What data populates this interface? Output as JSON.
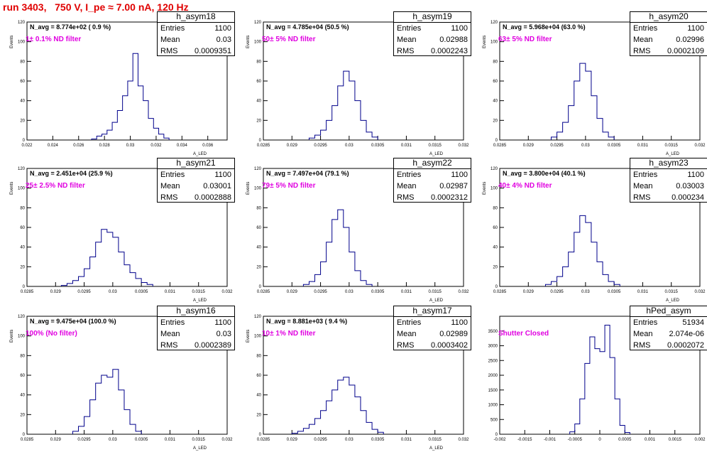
{
  "title": "run 3403,   750 V, I_pe ≈ 7.00 nA, 120 Hz",
  "colors": {
    "title": "#e00000",
    "histogram": "#00008b",
    "filter_text": "#e000e0"
  },
  "chart_data": [
    {
      "type": "histogram",
      "name": "h_asym18",
      "stats": {
        "entries": "1100",
        "mean": "0.03",
        "rms": "0.0009351"
      },
      "n_avg": "N_avg = 8.774e+02 ( 0.9 %)",
      "filter": "1± 0.1% ND filter",
      "xlabel": "A_LED",
      "ylabel": "Events",
      "xlim": [
        0.022,
        0.0375
      ],
      "ylim": [
        0,
        120
      ],
      "xticks": [
        "0.022",
        "0.024",
        "0.026",
        "0.028",
        "0.03",
        "0.032",
        "0.034",
        "0.036"
      ],
      "yticks": [
        "0",
        "20",
        "40",
        "60",
        "80",
        "100",
        "120"
      ],
      "x": [
        0.0272,
        0.0276,
        0.028,
        0.0284,
        0.0288,
        0.0292,
        0.0296,
        0.03,
        0.0304,
        0.0308,
        0.0312,
        0.0316,
        0.032,
        0.0324,
        0.0328
      ],
      "values": [
        1,
        4,
        6,
        10,
        18,
        30,
        45,
        60,
        88,
        55,
        40,
        22,
        12,
        6,
        2
      ]
    },
    {
      "type": "histogram",
      "name": "h_asym19",
      "stats": {
        "entries": "1100",
        "mean": "0.02988",
        "rms": "0.0002243"
      },
      "n_avg": "N_avg = 4.785e+04 (50.5 %)",
      "filter": "50± 5% ND filter",
      "xlabel": "A_LED",
      "ylabel": "Events",
      "xlim": [
        0.0285,
        0.032
      ],
      "ylim": [
        0,
        120
      ],
      "xticks": [
        "0.0285",
        "0.029",
        "0.0295",
        "0.03",
        "0.0305",
        "0.031",
        "0.0315",
        "0.032"
      ],
      "yticks": [
        "0",
        "20",
        "40",
        "60",
        "80",
        "100",
        "120"
      ],
      "x": [
        0.02935,
        0.02945,
        0.02955,
        0.02965,
        0.02975,
        0.02985,
        0.02995,
        0.03005,
        0.03015,
        0.03025,
        0.03035,
        0.03045
      ],
      "values": [
        2,
        5,
        10,
        20,
        35,
        55,
        70,
        60,
        40,
        20,
        8,
        3
      ]
    },
    {
      "type": "histogram",
      "name": "h_asym20",
      "stats": {
        "entries": "1100",
        "mean": "0.02996",
        "rms": "0.0002109"
      },
      "n_avg": "N_avg = 5.968e+04 (63.0 %)",
      "filter": "63± 5% ND filter",
      "xlabel": "A_LED",
      "ylabel": "Events",
      "xlim": [
        0.0285,
        0.032
      ],
      "ylim": [
        0,
        120
      ],
      "xticks": [
        "0.0285",
        "0.029",
        "0.0295",
        "0.03",
        "0.0305",
        "0.031",
        "0.0315",
        "0.032"
      ],
      "yticks": [
        "0",
        "20",
        "40",
        "60",
        "80",
        "100",
        "120"
      ],
      "x": [
        0.02945,
        0.02955,
        0.02965,
        0.02975,
        0.02985,
        0.02995,
        0.03005,
        0.03015,
        0.03025,
        0.03035,
        0.03045
      ],
      "values": [
        3,
        8,
        18,
        35,
        60,
        78,
        70,
        45,
        22,
        8,
        3
      ]
    },
    {
      "type": "histogram",
      "name": "h_asym21",
      "stats": {
        "entries": "1100",
        "mean": "0.03001",
        "rms": "0.0002888"
      },
      "n_avg": "N_avg = 2.451e+04 (25.9 %)",
      "filter": "25± 2.5% ND filter",
      "xlabel": "A_LED",
      "ylabel": "Events",
      "xlim": [
        0.0285,
        0.032
      ],
      "ylim": [
        0,
        120
      ],
      "xticks": [
        "0.0285",
        "0.029",
        "0.0295",
        "0.03",
        "0.0305",
        "0.031",
        "0.0315",
        "0.032"
      ],
      "yticks": [
        "0",
        "20",
        "40",
        "60",
        "80",
        "100",
        "120"
      ],
      "x": [
        0.02915,
        0.02925,
        0.02935,
        0.02945,
        0.02955,
        0.02965,
        0.02975,
        0.02985,
        0.02995,
        0.03005,
        0.03015,
        0.03025,
        0.03035,
        0.03045,
        0.03055,
        0.03065
      ],
      "values": [
        1,
        3,
        6,
        10,
        18,
        30,
        45,
        58,
        55,
        50,
        35,
        22,
        14,
        8,
        4,
        2
      ]
    },
    {
      "type": "histogram",
      "name": "h_asym22",
      "stats": {
        "entries": "1100",
        "mean": "0.02987",
        "rms": "0.0002312"
      },
      "n_avg": "N_avg = 7.497e+04 (79.1 %)",
      "filter": "79± 5% ND filter",
      "xlabel": "A_LED",
      "ylabel": "Events",
      "xlim": [
        0.0285,
        0.032
      ],
      "ylim": [
        0,
        120
      ],
      "xticks": [
        "0.0285",
        "0.029",
        "0.0295",
        "0.03",
        "0.0305",
        "0.031",
        "0.0315",
        "0.032"
      ],
      "yticks": [
        "0",
        "20",
        "40",
        "60",
        "80",
        "100",
        "120"
      ],
      "x": [
        0.02925,
        0.02935,
        0.02945,
        0.02955,
        0.02965,
        0.02975,
        0.02985,
        0.02995,
        0.03005,
        0.03015,
        0.03025,
        0.03035
      ],
      "values": [
        2,
        5,
        12,
        25,
        45,
        68,
        78,
        60,
        35,
        16,
        6,
        2
      ]
    },
    {
      "type": "histogram",
      "name": "h_asym23",
      "stats": {
        "entries": "1100",
        "mean": "0.03003",
        "rms": "0.000234"
      },
      "n_avg": "N_avg = 3.800e+04 (40.1 %)",
      "filter": "40± 4% ND filter",
      "xlabel": "A_LED",
      "ylabel": "Events",
      "xlim": [
        0.0285,
        0.032
      ],
      "ylim": [
        0,
        120
      ],
      "xticks": [
        "0.0285",
        "0.029",
        "0.0295",
        "0.03",
        "0.0305",
        "0.031",
        "0.0315",
        "0.032"
      ],
      "yticks": [
        "0",
        "20",
        "40",
        "60",
        "80",
        "100",
        "120"
      ],
      "x": [
        0.02935,
        0.02945,
        0.02955,
        0.02965,
        0.02975,
        0.02985,
        0.02995,
        0.03005,
        0.03015,
        0.03025,
        0.03035,
        0.03045,
        0.03055
      ],
      "values": [
        2,
        5,
        10,
        20,
        35,
        55,
        72,
        65,
        45,
        25,
        12,
        5,
        2
      ]
    },
    {
      "type": "histogram",
      "name": "h_asym16",
      "stats": {
        "entries": "1100",
        "mean": "0.03",
        "rms": "0.0002389"
      },
      "n_avg": "N_avg = 9.475e+04 (100.0 %)",
      "filter": "100% (No filter)",
      "xlabel": "A_LED",
      "ylabel": "Events",
      "xlim": [
        0.0285,
        0.032
      ],
      "ylim": [
        0,
        120
      ],
      "xticks": [
        "0.0285",
        "0.029",
        "0.0295",
        "0.03",
        "0.0305",
        "0.031",
        "0.0315",
        "0.032"
      ],
      "yticks": [
        "0",
        "20",
        "40",
        "60",
        "80",
        "100",
        "120"
      ],
      "x": [
        0.02935,
        0.02945,
        0.02955,
        0.02965,
        0.02975,
        0.02985,
        0.02995,
        0.03005,
        0.03015,
        0.03025,
        0.03035,
        0.03045
      ],
      "values": [
        3,
        8,
        18,
        35,
        52,
        60,
        58,
        66,
        45,
        25,
        10,
        3
      ]
    },
    {
      "type": "histogram",
      "name": "h_asym17",
      "stats": {
        "entries": "1100",
        "mean": "0.02989",
        "rms": "0.0003402"
      },
      "n_avg": "N_avg = 8.881e+03 ( 9.4 %)",
      "filter": "10± 1% ND filter",
      "xlabel": "A_LED",
      "ylabel": "Events",
      "xlim": [
        0.0285,
        0.032
      ],
      "ylim": [
        0,
        120
      ],
      "xticks": [
        "0.0285",
        "0.029",
        "0.0295",
        "0.03",
        "0.0305",
        "0.031",
        "0.0315",
        "0.032"
      ],
      "yticks": [
        "0",
        "20",
        "40",
        "60",
        "80",
        "100",
        "120"
      ],
      "x": [
        0.02905,
        0.02915,
        0.02925,
        0.02935,
        0.02945,
        0.02955,
        0.02965,
        0.02975,
        0.02985,
        0.02995,
        0.03005,
        0.03015,
        0.03025,
        0.03035,
        0.03045,
        0.03055
      ],
      "values": [
        1,
        3,
        6,
        10,
        16,
        24,
        34,
        45,
        55,
        58,
        50,
        38,
        24,
        12,
        5,
        2
      ]
    },
    {
      "type": "histogram",
      "name": "hPed_asym",
      "stats": {
        "entries": "51934",
        "mean": "2.074e-06",
        "rms": "0.0002072"
      },
      "n_avg": "",
      "filter": "Shutter Closed",
      "xlabel": "",
      "ylabel": "",
      "xlim": [
        -0.002,
        0.002
      ],
      "ylim": [
        0,
        4000
      ],
      "xticks": [
        "-0.002",
        "-0.0015",
        "-0.001",
        "-0.0005",
        "0",
        "0.0005",
        "0.001",
        "0.0015",
        "0.002"
      ],
      "yticks": [
        "0",
        "500",
        "1000",
        "1500",
        "2000",
        "2500",
        "3000",
        "3500"
      ],
      "x": [
        -0.00055,
        -0.00045,
        -0.00035,
        -0.00025,
        -0.00015,
        -5e-05,
        5e-05,
        0.00015,
        0.00025,
        0.00035,
        0.00045,
        0.00055
      ],
      "values": [
        80,
        350,
        1200,
        2400,
        3300,
        2900,
        2800,
        3700,
        2600,
        1200,
        300,
        60
      ]
    }
  ]
}
